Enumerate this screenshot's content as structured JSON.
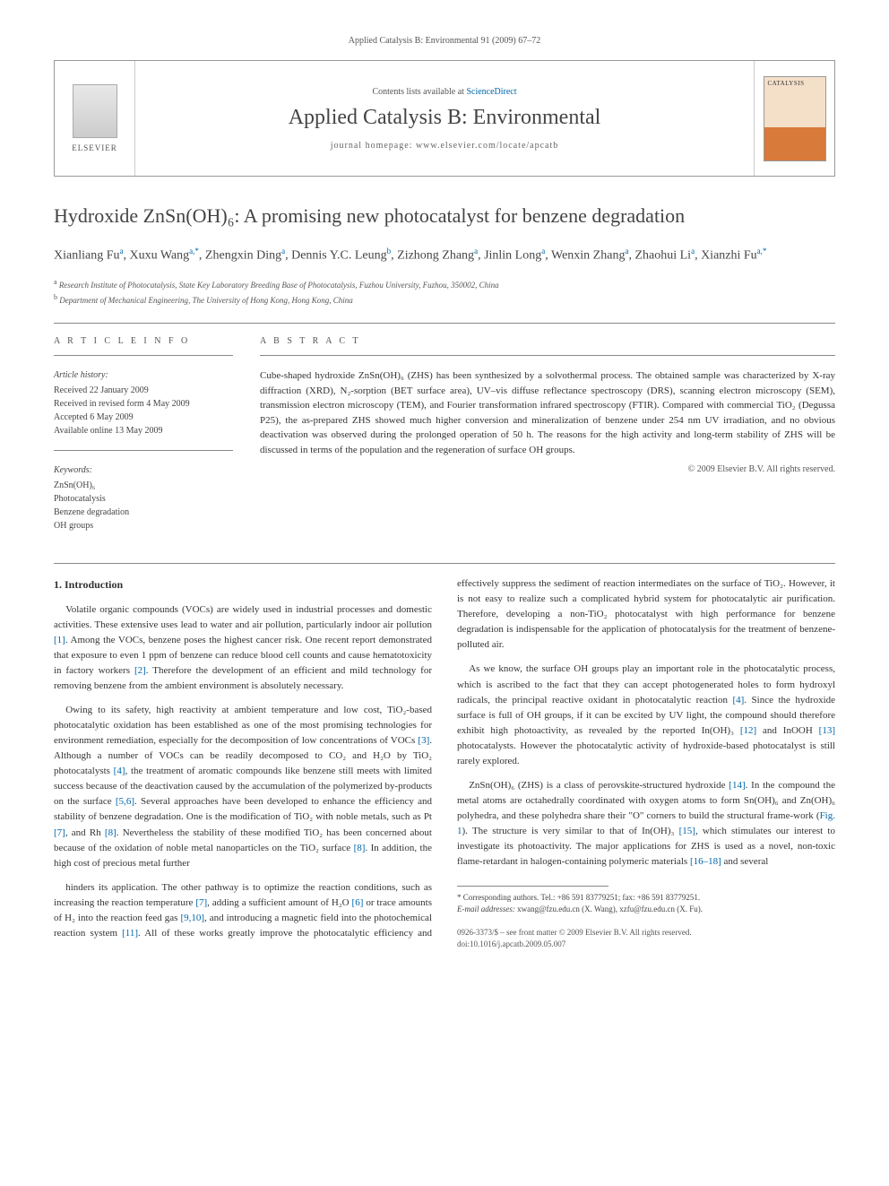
{
  "running_head": "Applied Catalysis B: Environmental 91 (2009) 67–72",
  "masthead": {
    "publisher": "ELSEVIER",
    "contents_prefix": "Contents lists available at ",
    "contents_link": "ScienceDirect",
    "journal": "Applied Catalysis B: Environmental",
    "homepage_prefix": "journal homepage: ",
    "homepage": "www.elsevier.com/locate/apcatb",
    "cover_label": "CATALYSIS"
  },
  "title": "Hydroxide ZnSn(OH)₆: A promising new photocatalyst for benzene degradation",
  "authors_html": "Xianliang Fu<sup>a</sup>, Xuxu Wang<sup>a,*</sup>, Zhengxin Ding<sup>a</sup>, Dennis Y.C. Leung<sup>b</sup>, Zizhong Zhang<sup>a</sup>, Jinlin Long<sup>a</sup>, Wenxin Zhang<sup>a</sup>, Zhaohui Li<sup>a</sup>, Xianzhi Fu<sup>a,*</sup>",
  "affiliations": [
    {
      "mark": "a",
      "text": "Research Institute of Photocatalysis, State Key Laboratory Breeding Base of Photocatalysis, Fuzhou University, Fuzhou, 350002, China"
    },
    {
      "mark": "b",
      "text": "Department of Mechanical Engineering, The University of Hong Kong, Hong Kong, China"
    }
  ],
  "article_info": {
    "heading": "A R T I C L E   I N F O",
    "history_head": "Article history:",
    "history": [
      "Received 22 January 2009",
      "Received in revised form 4 May 2009",
      "Accepted 6 May 2009",
      "Available online 13 May 2009"
    ],
    "keywords_head": "Keywords:",
    "keywords": [
      "ZnSn(OH)₆",
      "Photocatalysis",
      "Benzene degradation",
      "OH groups"
    ]
  },
  "abstract": {
    "heading": "A B S T R A C T",
    "text": "Cube-shaped hydroxide ZnSn(OH)₆ (ZHS) has been synthesized by a solvothermal process. The obtained sample was characterized by X-ray diffraction (XRD), N₂-sorption (BET surface area), UV–vis diffuse reflectance spectroscopy (DRS), scanning electron microscopy (SEM), transmission electron microscopy (TEM), and Fourier transformation infrared spectroscopy (FTIR). Compared with commercial TiO₂ (Degussa P25), the as-prepared ZHS showed much higher conversion and mineralization of benzene under 254 nm UV irradiation, and no obvious deactivation was observed during the prolonged operation of 50 h. The reasons for the high activity and long-term stability of ZHS will be discussed in terms of the population and the regeneration of surface OH groups.",
    "copyright": "© 2009 Elsevier B.V. All rights reserved."
  },
  "section1_heading": "1. Introduction",
  "paragraphs": [
    "Volatile organic compounds (VOCs) are widely used in industrial processes and domestic activities. These extensive uses lead to water and air pollution, particularly indoor air pollution [1]. Among the VOCs, benzene poses the highest cancer risk. One recent report demonstrated that exposure to even 1 ppm of benzene can reduce blood cell counts and cause hematotoxicity in factory workers [2]. Therefore the development of an efficient and mild technology for removing benzene from the ambient environment is absolutely necessary.",
    "Owing to its safety, high reactivity at ambient temperature and low cost, TiO₂-based photocatalytic oxidation has been established as one of the most promising technologies for environment remediation, especially for the decomposition of low concentrations of VOCs [3]. Although a number of VOCs can be readily decomposed to CO₂ and H₂O by TiO₂ photocatalysts [4], the treatment of aromatic compounds like benzene still meets with limited success because of the deactivation caused by the accumulation of the polymerized by-products on the surface [5,6]. Several approaches have been developed to enhance the efficiency and stability of benzene degradation. One is the modification of TiO₂ with noble metals, such as Pt [7], and Rh [8]. Nevertheless the stability of these modified TiO₂ has been concerned about because of the oxidation of noble metal nanoparticles on the TiO₂ surface [8]. In addition, the high cost of precious metal further",
    "hinders its application. The other pathway is to optimize the reaction conditions, such as increasing the reaction temperature [7], adding a sufficient amount of H₂O [6] or trace amounts of H₂ into the reaction feed gas [9,10], and introducing a magnetic field into the photochemical reaction system [11]. All of these works greatly improve the photocatalytic efficiency and effectively suppress the sediment of reaction intermediates on the surface of TiO₂. However, it is not easy to realize such a complicated hybrid system for photocatalytic air purification. Therefore, developing a non-TiO₂ photocatalyst with high performance for benzene degradation is indispensable for the application of photocatalysis for the treatment of benzene-polluted air.",
    "As we know, the surface OH groups play an important role in the photocatalytic process, which is ascribed to the fact that they can accept photogenerated holes to form hydroxyl radicals, the principal reactive oxidant in photocatalytic reaction [4]. Since the hydroxide surface is full of OH groups, if it can be excited by UV light, the compound should therefore exhibit high photoactivity, as revealed by the reported In(OH)₃ [12] and InOOH [13] photocatalysts. However the photocatalytic activity of hydroxide-based photocatalyst is still rarely explored.",
    "ZnSn(OH)₆ (ZHS) is a class of perovskite-structured hydroxide [14]. In the compound the metal atoms are octahedrally coordinated with oxygen atoms to form Sn(OH)₆ and Zn(OH)₆ polyhedra, and these polyhedra share their \"O\" corners to build the structural frame-work (Fig. 1). The structure is very similar to that of In(OH)₃ [15], which stimulates our interest to investigate its photoactivity. The major applications for ZHS is used as a novel, non-toxic flame-retardant in halogen-containing polymeric materials [16–18] and several"
  ],
  "footnote": {
    "mark": "*",
    "label": "Corresponding authors. Tel.: +86 591 83779251; fax: +86 591 83779251.",
    "emails_label": "E-mail addresses:",
    "emails": "xwang@fzu.edu.cn (X. Wang), xzfu@fzu.edu.cn (X. Fu)."
  },
  "footer": {
    "issn": "0926-3373/$ – see front matter © 2009 Elsevier B.V. All rights reserved.",
    "doi": "doi:10.1016/j.apcatb.2009.05.007"
  },
  "colors": {
    "link": "#0066aa",
    "text": "#333333",
    "muted": "#555555",
    "rule": "#888888"
  }
}
